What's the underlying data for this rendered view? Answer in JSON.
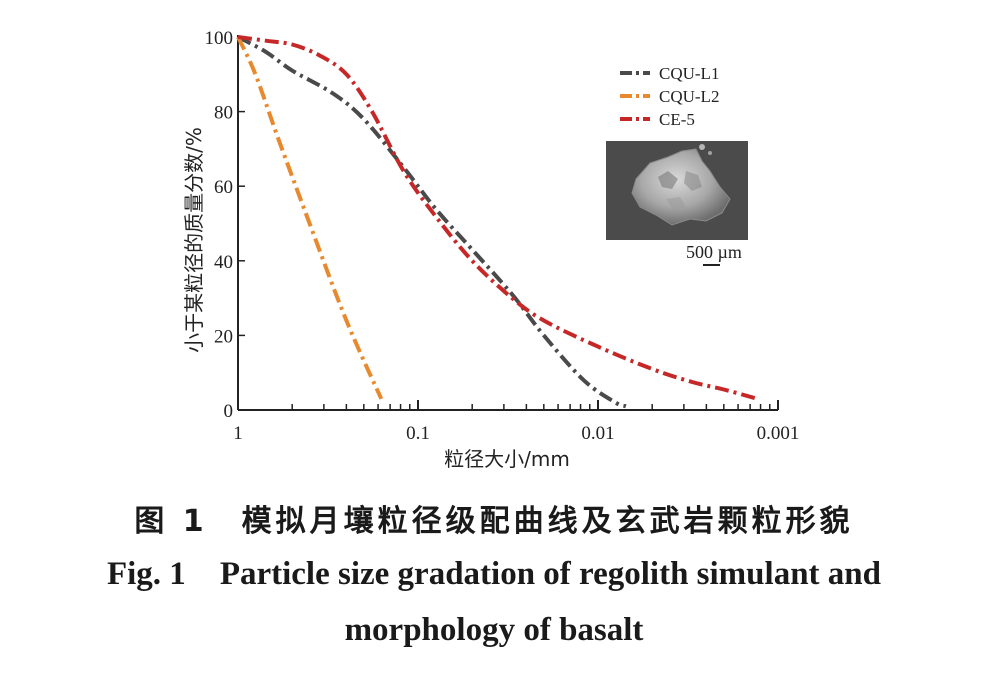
{
  "chart_data": {
    "type": "line",
    "xscale": "log",
    "x_reversed": true,
    "xlim": [
      1,
      0.001
    ],
    "ylim": [
      0,
      100
    ],
    "xlabel": "粒径大小/mm",
    "ylabel": "小于某粒径的质量分数/%",
    "x_ticks": [
      1,
      0.1,
      0.01,
      0.001
    ],
    "x_tick_labels": [
      "1",
      "0.1",
      "0.01",
      "0.001"
    ],
    "y_ticks": [
      0,
      20,
      40,
      60,
      80,
      100
    ],
    "y_tick_labels": [
      "0",
      "20",
      "40",
      "60",
      "80",
      "100"
    ],
    "legend_position": "top-right",
    "series": [
      {
        "name": "CQU-L1",
        "color": "#4a4a4a",
        "x": [
          1,
          0.7,
          0.5,
          0.3,
          0.2,
          0.12,
          0.08,
          0.05,
          0.03,
          0.02,
          0.012,
          0.008,
          0.007
        ],
        "y": [
          100,
          96,
          91,
          85,
          78,
          65,
          54,
          43,
          31,
          20,
          8,
          2,
          1
        ]
      },
      {
        "name": "CQU-L2",
        "color": "#e8892e",
        "x": [
          1,
          0.8,
          0.6,
          0.4,
          0.25,
          0.16
        ],
        "y": [
          100,
          90,
          73,
          50,
          24,
          3
        ]
      },
      {
        "name": "CE-5",
        "color": "#c62828",
        "x": [
          1,
          0.7,
          0.5,
          0.35,
          0.25,
          0.18,
          0.12,
          0.08,
          0.05,
          0.03,
          0.02,
          0.01,
          0.005,
          0.003,
          0.002,
          0.0013
        ],
        "y": [
          100,
          99,
          98,
          95,
          90,
          80,
          64,
          52,
          40,
          30,
          24,
          17,
          11,
          7.5,
          5.5,
          3
        ]
      }
    ]
  },
  "inset": {
    "scale_label": "500 µm"
  },
  "captions": {
    "cn_label": "图 1",
    "cn_title": "模拟月壤粒径级配曲线及玄武岩颗粒形貌",
    "en_label": "Fig. 1",
    "en_title_line1": "Particle size gradation of regolith simulant and",
    "en_title_line2": "morphology of basalt"
  }
}
